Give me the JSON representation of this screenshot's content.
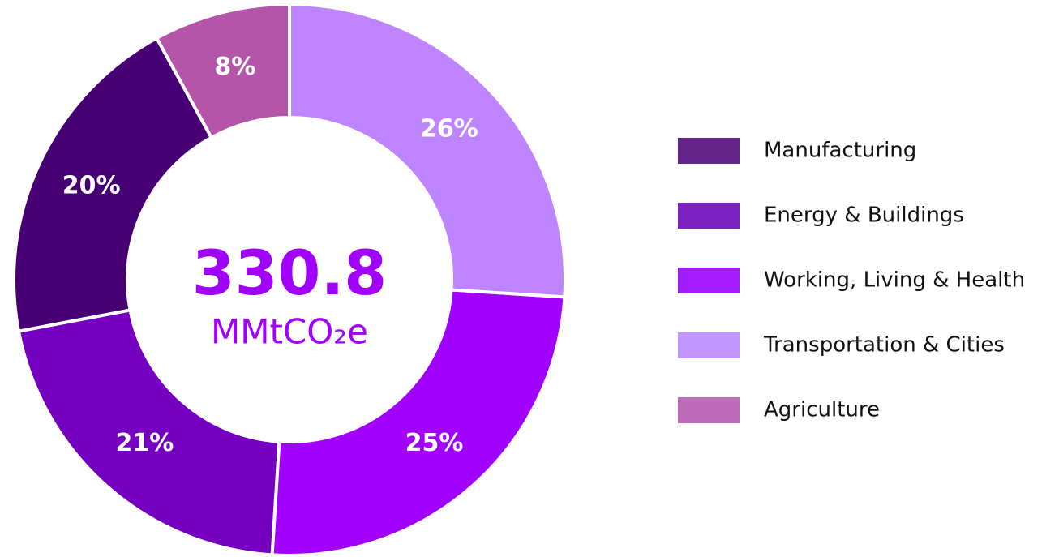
{
  "chart_data": {
    "type": "pie",
    "categories": [
      "Manufacturing",
      "Energy & Buildings",
      "Working, Living & Health",
      "Transportation & Cities",
      "Agriculture"
    ],
    "values": [
      20,
      21,
      25,
      26,
      8
    ],
    "value_labels": [
      "20%",
      "21%",
      "25%",
      "26%",
      "8%"
    ],
    "colors": [
      "#460073",
      "#7500c0",
      "#a100ff",
      "#bf84ff",
      "#b455aa"
    ],
    "legend_colors": [
      "#622587",
      "#7b22c2",
      "#a21cff",
      "#c395ff",
      "#bf6cbb"
    ],
    "center_value": "330.8",
    "center_unit": "MMtCO₂e",
    "legend": "right"
  }
}
